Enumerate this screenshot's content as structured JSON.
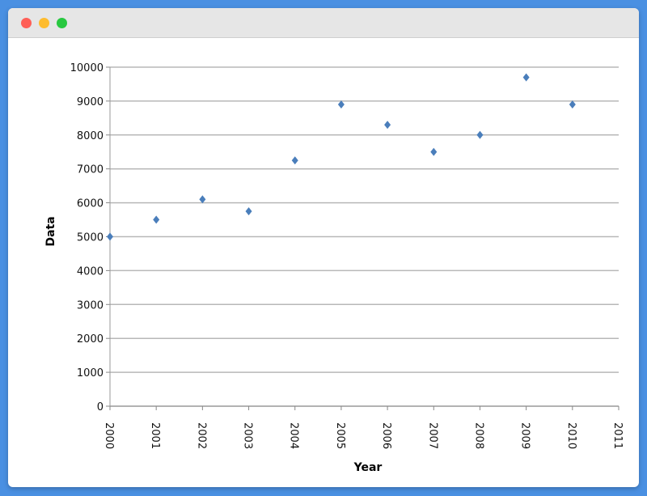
{
  "window": {
    "controls": [
      "close",
      "minimize",
      "maximize"
    ]
  },
  "chart_data": {
    "type": "scatter",
    "title": "",
    "xlabel": "Year",
    "ylabel": "Data",
    "xlim": [
      2000,
      2011
    ],
    "ylim": [
      0,
      10000
    ],
    "x_ticks": [
      "2000",
      "2001",
      "2002",
      "2003",
      "2004",
      "2005",
      "2006",
      "2007",
      "2008",
      "2009",
      "2010",
      "2011"
    ],
    "y_ticks": [
      "0",
      "1000",
      "2000",
      "3000",
      "4000",
      "5000",
      "6000",
      "7000",
      "8000",
      "9000",
      "10000"
    ],
    "grid": true,
    "legend": "none",
    "marker_color": "#4a7ebb",
    "gridline_color": "#b8b8b8",
    "points": [
      {
        "x": 2000,
        "y": 5000
      },
      {
        "x": 2001,
        "y": 5500
      },
      {
        "x": 2002,
        "y": 6100
      },
      {
        "x": 2003,
        "y": 5750
      },
      {
        "x": 2004,
        "y": 7250
      },
      {
        "x": 2005,
        "y": 8900
      },
      {
        "x": 2006,
        "y": 8300
      },
      {
        "x": 2007,
        "y": 7500
      },
      {
        "x": 2008,
        "y": 8000
      },
      {
        "x": 2009,
        "y": 9700
      },
      {
        "x": 2010,
        "y": 8900
      }
    ]
  }
}
